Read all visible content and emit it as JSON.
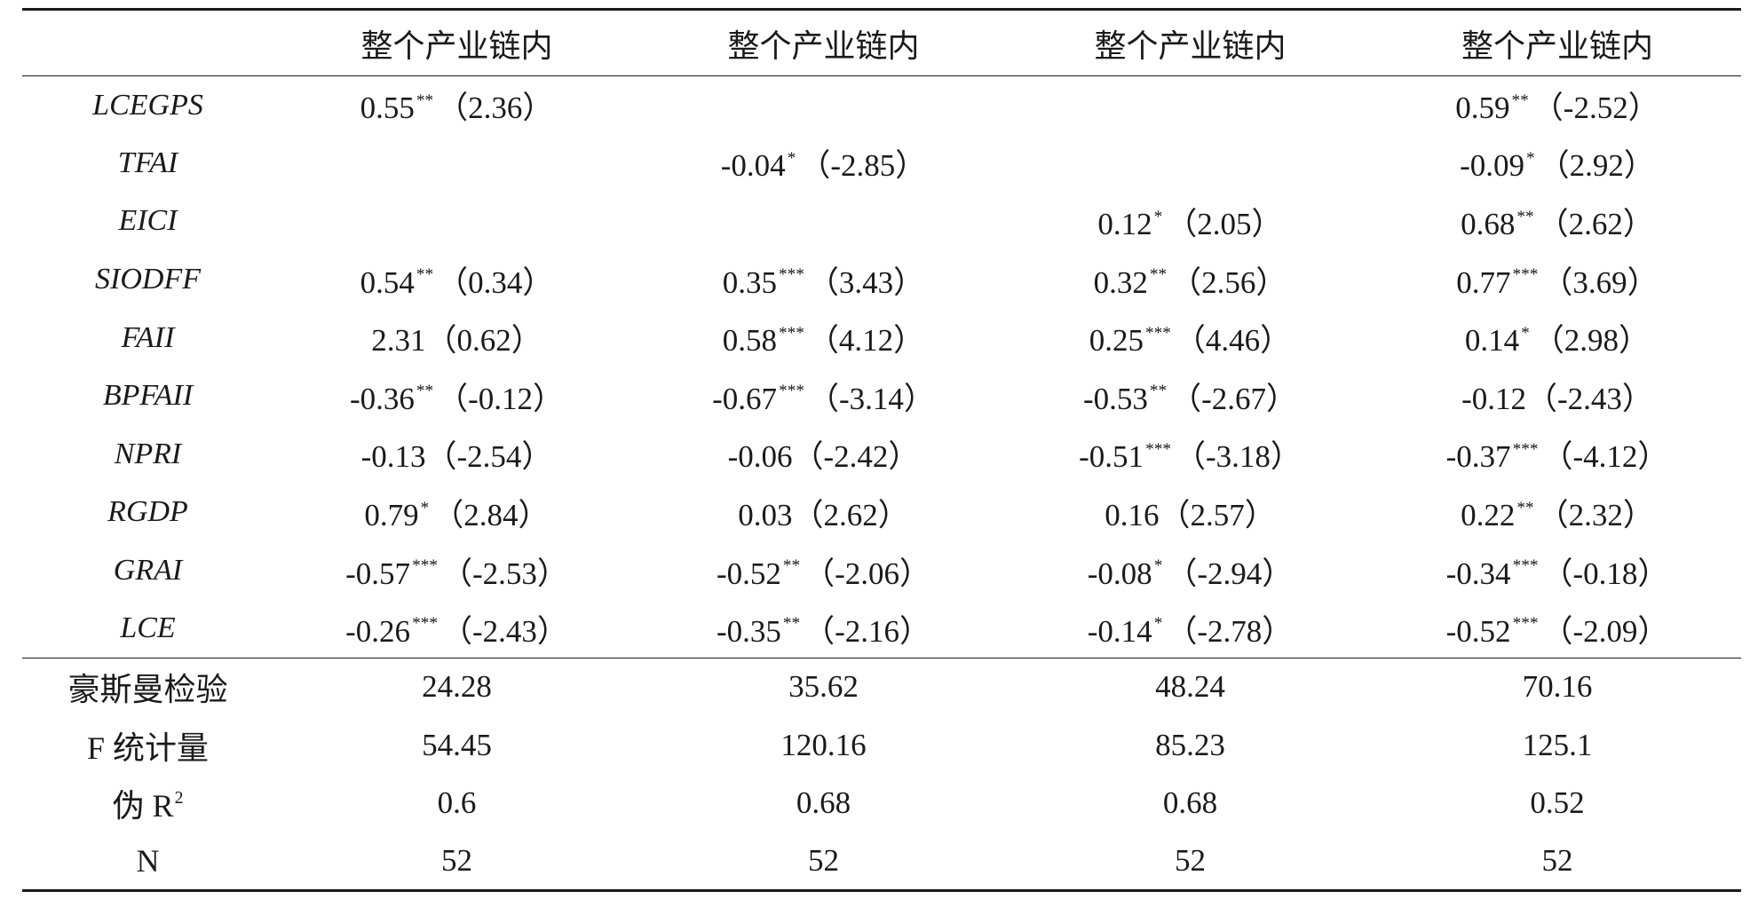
{
  "table": {
    "header": [
      "整个产业链内",
      "整个产业链内",
      "整个产业链内",
      "整个产业链内"
    ],
    "rows": [
      {
        "label": "LCEGPS",
        "cells": [
          {
            "coef": "0.55",
            "stars": "**",
            "t": "（2.36）"
          },
          null,
          null,
          {
            "coef": "0.59",
            "stars": "**",
            "t": "（-2.52）"
          }
        ]
      },
      {
        "label": "TFAI",
        "cells": [
          null,
          {
            "coef": "-0.04",
            "stars": "*",
            "t": "（-2.85）"
          },
          null,
          {
            "coef": "-0.09",
            "stars": "*",
            "t": "（2.92）"
          }
        ]
      },
      {
        "label": "EICI",
        "cells": [
          null,
          null,
          {
            "coef": "0.12",
            "stars": "*",
            "t": "（2.05）"
          },
          {
            "coef": "0.68",
            "stars": "**",
            "t": "（2.62）"
          }
        ]
      },
      {
        "label": "SIODFF",
        "cells": [
          {
            "coef": "0.54",
            "stars": "**",
            "t": "（0.34）"
          },
          {
            "coef": "0.35",
            "stars": "***",
            "t": "（3.43）"
          },
          {
            "coef": "0.32",
            "stars": "**",
            "t": "（2.56）"
          },
          {
            "coef": "0.77",
            "stars": "***",
            "t": "（3.69）"
          }
        ]
      },
      {
        "label": "FAII",
        "cells": [
          {
            "coef": "2.31",
            "t": "（0.62）"
          },
          {
            "coef": "0.58",
            "stars": "***",
            "t": "（4.12）"
          },
          {
            "coef": "0.25",
            "stars": "***",
            "t": "（4.46）"
          },
          {
            "coef": "0.14",
            "stars": "*",
            "t": "（2.98）"
          }
        ]
      },
      {
        "label": "BPFAII",
        "cells": [
          {
            "coef": "-0.36",
            "stars": "**",
            "t": "（-0.12）"
          },
          {
            "coef": "-0.67",
            "stars": "***",
            "t": "（-3.14）"
          },
          {
            "coef": "-0.53",
            "stars": "**",
            "t": "（-2.67）"
          },
          {
            "coef": "-0.12",
            "t": "（-2.43）"
          }
        ]
      },
      {
        "label": "NPRI",
        "cells": [
          {
            "coef": "-0.13",
            "t": "（-2.54）"
          },
          {
            "coef": "-0.06",
            "t": "（-2.42）"
          },
          {
            "coef": "-0.51",
            "stars": "***",
            "t": "（-3.18）"
          },
          {
            "coef": "-0.37",
            "stars": "***",
            "t": "（-4.12）"
          }
        ]
      },
      {
        "label": "RGDP",
        "cells": [
          {
            "coef": "0.79",
            "stars": "*",
            "t": "（2.84）"
          },
          {
            "coef": "0.03",
            "t": "（2.62）"
          },
          {
            "coef": "0.16",
            "t": "（2.57）"
          },
          {
            "coef": "0.22",
            "stars": "**",
            "t": "（2.32）"
          }
        ]
      },
      {
        "label": "GRAI",
        "cells": [
          {
            "coef": "-0.57",
            "stars": "***",
            "t": "（-2.53）"
          },
          {
            "coef": "-0.52",
            "stars": "**",
            "t": "（-2.06）"
          },
          {
            "coef": "-0.08",
            "stars": "*",
            "t": "（-2.94）"
          },
          {
            "coef": "-0.34",
            "stars": "***",
            "t": "（-0.18）"
          }
        ]
      },
      {
        "label": "LCE",
        "cells": [
          {
            "coef": "-0.26",
            "stars": "***",
            "t": "（-2.43）"
          },
          {
            "coef": "-0.35",
            "stars": "**",
            "t": "（-2.16）"
          },
          {
            "coef": "-0.14",
            "stars": "*",
            "t": "（-2.78）"
          },
          {
            "coef": "-0.52",
            "stars": "***",
            "t": "（-2.09）"
          }
        ]
      }
    ],
    "stats": [
      {
        "label": "豪斯曼检验",
        "values": [
          "24.28",
          "35.62",
          "48.24",
          "70.16"
        ]
      },
      {
        "label": "F 统计量",
        "values": [
          "54.45",
          "120.16",
          "85.23",
          "125.1"
        ]
      },
      {
        "label": "伪 R",
        "label_sup": "2",
        "values": [
          "0.6",
          "0.68",
          "0.68",
          "0.52"
        ]
      },
      {
        "label": "N",
        "values": [
          "52",
          "52",
          "52",
          "52"
        ]
      }
    ]
  }
}
